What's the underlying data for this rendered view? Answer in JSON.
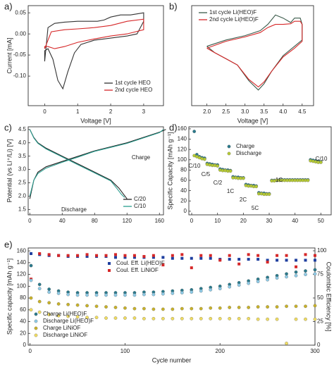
{
  "chart_data": [
    {
      "type": "line",
      "panel_label": "a)",
      "xlabel": "Voltage [V]",
      "ylabel": "Current [mA]",
      "xlim": [
        -0.5,
        3.6
      ],
      "ylim": [
        -0.17,
        0.067
      ],
      "xticks": [
        0,
        1,
        2,
        3
      ],
      "yticks": [
        {
          "value": -0.1,
          "label": "-0.10"
        },
        -0.05,
        {
          "value": 0,
          "label": "0.00"
        },
        0.05
      ],
      "series": [
        {
          "name": "1st cycle HEO",
          "color": "#333333",
          "x": [
            0.0,
            0.1,
            0.3,
            0.6,
            1.0,
            1.4,
            1.6,
            1.8,
            2.0,
            2.3,
            2.6,
            3.0,
            3.0,
            2.8,
            2.5,
            2.0,
            1.5,
            1.1,
            0.9,
            0.7,
            0.55,
            0.4,
            0.25,
            0.1,
            0.0,
            0.0
          ],
          "values": [
            -0.065,
            0.015,
            0.025,
            0.028,
            0.03,
            0.03,
            0.03,
            0.033,
            0.04,
            0.045,
            0.045,
            0.05,
            0.03,
            0.0,
            -0.005,
            -0.01,
            -0.015,
            -0.025,
            -0.045,
            -0.09,
            -0.13,
            -0.11,
            -0.06,
            -0.035,
            -0.04,
            -0.065
          ]
        },
        {
          "name": "2nd cycle HEO",
          "color": "#d62728",
          "x": [
            0.0,
            0.2,
            0.6,
            1.0,
            1.5,
            2.0,
            2.5,
            3.0,
            3.0,
            2.5,
            2.0,
            1.5,
            1.0,
            0.6,
            0.3,
            0.1,
            0.0,
            0.0
          ],
          "values": [
            -0.035,
            0.005,
            0.01,
            0.012,
            0.015,
            0.02,
            0.03,
            0.035,
            0.01,
            0.0,
            -0.005,
            -0.012,
            -0.02,
            -0.03,
            -0.035,
            -0.03,
            -0.03,
            -0.035
          ]
        }
      ]
    },
    {
      "type": "line",
      "panel_label": "b)",
      "xlabel": "Voltage [V]",
      "xlim": [
        1.6,
        4.8
      ],
      "ylim": [
        -0.1,
        0.06
      ],
      "xticks": [
        {
          "value": 2,
          "label": "2.0"
        },
        2.5,
        {
          "value": 3,
          "label": "3.0"
        },
        3.5,
        {
          "value": 4,
          "label": "4.0"
        },
        4.5
      ],
      "series": [
        {
          "name": "1st cycle Li(HEO)F",
          "color": "#3a5a4a",
          "x": [
            2.0,
            2.5,
            3.0,
            3.4,
            3.6,
            3.8,
            4.0,
            4.2,
            4.3,
            4.45,
            4.5,
            4.5,
            4.3,
            4.0,
            3.7,
            3.5,
            3.35,
            3.1,
            2.8,
            2.5,
            2.2,
            2.0
          ],
          "values": [
            -0.005,
            0.005,
            0.012,
            0.02,
            0.03,
            0.045,
            0.04,
            0.033,
            0.04,
            0.04,
            0.03,
            0.005,
            -0.005,
            -0.02,
            -0.045,
            -0.065,
            -0.075,
            -0.06,
            -0.035,
            -0.025,
            -0.015,
            -0.005
          ]
        },
        {
          "name": "2nd cycle Li(HEO)F",
          "color": "#d62728",
          "x": [
            2.0,
            2.5,
            3.0,
            3.4,
            3.6,
            3.8,
            4.0,
            4.2,
            4.3,
            4.45,
            4.5,
            4.5,
            4.3,
            4.0,
            3.7,
            3.5,
            3.35,
            3.1,
            2.8,
            2.5,
            2.2,
            2.0
          ],
          "values": [
            -0.008,
            0.003,
            0.01,
            0.017,
            0.025,
            0.03,
            0.03,
            0.031,
            0.035,
            0.035,
            0.03,
            0.003,
            -0.008,
            -0.022,
            -0.045,
            -0.062,
            -0.07,
            -0.058,
            -0.035,
            -0.025,
            -0.015,
            -0.008
          ]
        }
      ]
    },
    {
      "type": "line",
      "panel_label": "c)",
      "ylabel": "Potential (vs Li⁺/Li) [V]",
      "xlim": [
        -2,
        165
      ],
      "ylim": [
        1.3,
        4.6
      ],
      "xticks": [
        0,
        40,
        80,
        120,
        160
      ],
      "yticks": [
        1.5,
        {
          "value": 2,
          "label": "2.0"
        },
        2.5,
        {
          "value": 3,
          "label": "3.0"
        },
        3.5,
        {
          "value": 4,
          "label": "4.0"
        },
        4.5
      ],
      "annotations": [
        "Charge",
        "Discharge"
      ],
      "series": [
        {
          "name": "C/20",
          "color": "#222222",
          "x": [
            0,
            5,
            10,
            20,
            40,
            60,
            80,
            100,
            120,
            140,
            160,
            168,
            null,
            0,
            5,
            10,
            20,
            40,
            60,
            80,
            100,
            110,
            115,
            120
          ],
          "values": [
            1.9,
            2.6,
            2.9,
            3.1,
            3.3,
            3.5,
            3.7,
            3.85,
            4.0,
            4.2,
            4.4,
            4.5,
            null,
            4.5,
            4.2,
            4.0,
            3.8,
            3.5,
            3.2,
            2.9,
            2.6,
            2.3,
            2.1,
            1.9
          ]
        },
        {
          "name": "C/10",
          "color": "#2a9d8f",
          "x": [
            0,
            5,
            10,
            20,
            40,
            60,
            80,
            100,
            120,
            140,
            160,
            165,
            null,
            0,
            5,
            10,
            20,
            40,
            60,
            80,
            100,
            108,
            113,
            117
          ],
          "values": [
            2.0,
            2.6,
            2.85,
            3.05,
            3.27,
            3.47,
            3.68,
            3.83,
            3.98,
            4.18,
            4.38,
            4.5,
            null,
            4.5,
            4.18,
            3.98,
            3.77,
            3.47,
            3.17,
            2.87,
            2.57,
            2.27,
            2.07,
            1.95
          ]
        }
      ]
    },
    {
      "type": "scatter",
      "panel_label": "d)",
      "ylabel": "Specific Capacity [mAh g⁻¹]",
      "xlim": [
        -1.1,
        54
      ],
      "ylim": [
        -7,
        164
      ],
      "xticks": [
        0,
        10,
        20,
        30,
        40,
        50
      ],
      "yticks": [
        0,
        20,
        40,
        60,
        80,
        100,
        120,
        140,
        160
      ],
      "annotations": [
        "C/10",
        "C/5",
        "C/2",
        "1C",
        "2C",
        "5C",
        "1C",
        "C/10"
      ],
      "x": [
        1,
        2,
        3,
        4,
        5,
        6,
        7,
        8,
        9,
        10,
        11,
        12,
        13,
        14,
        15,
        16,
        17,
        18,
        19,
        20,
        21,
        22,
        23,
        24,
        25,
        26,
        27,
        28,
        29,
        30,
        31,
        32,
        33,
        34,
        35,
        36,
        37,
        38,
        39,
        40,
        41,
        42,
        43,
        44,
        45,
        46,
        47,
        48,
        49,
        50
      ],
      "series": [
        {
          "name": "Charge",
          "color": "#2a7a8c",
          "values": [
            155,
            110,
            106,
            104,
            103,
            93,
            92,
            91,
            90,
            90,
            82,
            81,
            80,
            80,
            79,
            67,
            66,
            66,
            65,
            65,
            52,
            51,
            50,
            50,
            49,
            36,
            35,
            35,
            34,
            34,
            60,
            60,
            60,
            61,
            61,
            61,
            61,
            61,
            61,
            61,
            61,
            61,
            61,
            61,
            61,
            100,
            99,
            98,
            97,
            96
          ]
        },
        {
          "name": "Discharge",
          "color": "#b5c934",
          "values": [
            108,
            106,
            104,
            102,
            101,
            91,
            90,
            89,
            89,
            88,
            80,
            79,
            79,
            78,
            78,
            65,
            65,
            64,
            64,
            64,
            50,
            49,
            49,
            48,
            48,
            34,
            34,
            33,
            33,
            33,
            59,
            59,
            60,
            60,
            60,
            60,
            60,
            60,
            60,
            60,
            60,
            60,
            60,
            60,
            60,
            98,
            97,
            96,
            95,
            95
          ]
        }
      ]
    },
    {
      "type": "scatter",
      "panel_label": "e)",
      "xlabel": "Cycle number",
      "ylabel": "Specific capacity [mAh g⁻¹]",
      "y2label": "Coulombic Efficiency [%]",
      "xlim": [
        -2,
        300
      ],
      "ylim": [
        0,
        165
      ],
      "y2lim": [
        0,
        103
      ],
      "xticks": [
        0,
        100,
        200,
        300
      ],
      "yticks": [
        0,
        20,
        40,
        60,
        80,
        100,
        120,
        140,
        160
      ],
      "y2ticks": [
        0,
        25,
        50,
        75,
        100
      ],
      "x": [
        1,
        10,
        20,
        30,
        40,
        50,
        60,
        70,
        80,
        90,
        100,
        110,
        120,
        130,
        140,
        150,
        160,
        170,
        180,
        190,
        200,
        210,
        220,
        230,
        240,
        250,
        260,
        270,
        280,
        290,
        300
      ],
      "series": [
        {
          "name": "Coul. Eff. Li(HEO)F",
          "color": "#1f3f9f",
          "axis": "y2",
          "marker": "square",
          "values": [
            97,
            96,
            95,
            95,
            94,
            94,
            94,
            94,
            94,
            93,
            93,
            93,
            93,
            93,
            93,
            92,
            92,
            92,
            92,
            92,
            91,
            91,
            91,
            91,
            91,
            90,
            90,
            90,
            90,
            90,
            90
          ]
        },
        {
          "name": "Coul. Eff. LiNiOF",
          "color": "#d62728",
          "axis": "y2",
          "marker": "square",
          "values": [
            70,
            97,
            96,
            95,
            95,
            95,
            96,
            95,
            95,
            96,
            95,
            95,
            94,
            95,
            85,
            95,
            96,
            82,
            95,
            95,
            90,
            95,
            86,
            96,
            95,
            88,
            95,
            95,
            83,
            96,
            95
          ]
        },
        {
          "name": "Charge Li(HEO)F",
          "color": "#2a7a8c",
          "marker": "circle",
          "values": [
            135,
            103,
            95,
            92,
            90,
            89,
            89,
            89,
            89,
            89,
            89,
            89,
            90,
            90,
            91,
            92,
            93,
            94,
            96,
            98,
            100,
            103,
            106,
            109,
            112,
            115,
            118,
            121,
            124,
            126,
            128
          ]
        },
        {
          "name": "Discharge Li(HEO)F",
          "color": "#8ecae6",
          "marker": "circle",
          "values": [
            110,
            96,
            90,
            88,
            86,
            85,
            85,
            85,
            85,
            85,
            85,
            85,
            86,
            86,
            87,
            88,
            89,
            90,
            92,
            94,
            96,
            99,
            102,
            105,
            108,
            111,
            114,
            116,
            118,
            120,
            121
          ]
        },
        {
          "name": "Charge LiNiOF",
          "color": "#c9b22a",
          "marker": "circle",
          "values": [
            80,
            74,
            72,
            70,
            69,
            68,
            67,
            66,
            65,
            64,
            63,
            62,
            62,
            61,
            61,
            61,
            62,
            62,
            62,
            63,
            63,
            64,
            64,
            64,
            65,
            65,
            65,
            66,
            66,
            66,
            67
          ]
        },
        {
          "name": "Discharge LiNiOF",
          "color": "#f0dc60",
          "marker": "circle",
          "values": [
            60,
            56,
            52,
            50,
            49,
            48,
            47,
            47,
            46,
            46,
            46,
            46,
            45,
            45,
            45,
            45,
            45,
            45,
            45,
            45,
            45,
            45,
            45,
            45,
            44,
            44,
            44,
            3,
            44,
            44,
            44
          ]
        }
      ]
    }
  ]
}
